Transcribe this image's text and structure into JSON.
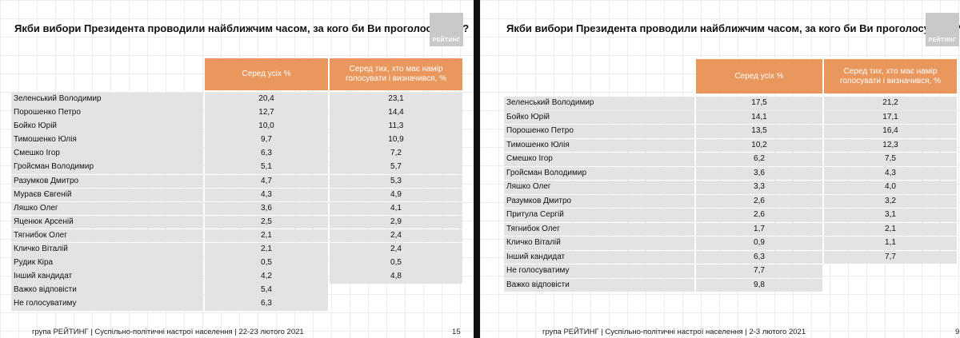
{
  "slides": [
    {
      "title": "Якби вибори Президента проводили найближчим часом, за кого би Ви проголосували?",
      "logo": "РЕЙТИНГ",
      "col1_header": "Серед усіх %",
      "col2_header": "Серед тих, хто має намір голосувати і визначився, %",
      "rows": [
        {
          "name": "Зеленський Володимир",
          "v1": "20,4",
          "v2": "23,1"
        },
        {
          "name": "Порошенко Петро",
          "v1": "12,7",
          "v2": "14,4"
        },
        {
          "name": "Бойко Юрій",
          "v1": "10,0",
          "v2": "11,3"
        },
        {
          "name": "Тимошенко Юлія",
          "v1": "9,7",
          "v2": "10,9"
        },
        {
          "name": "Смешко Ігор",
          "v1": "6,3",
          "v2": "7,2"
        },
        {
          "name": "Гройсман Володимир",
          "v1": "5,1",
          "v2": "5,7"
        },
        {
          "name": "Разумков Дмитро",
          "v1": "4,7",
          "v2": "5,3"
        },
        {
          "name": "Мураєв Євгеній",
          "v1": "4,3",
          "v2": "4,9"
        },
        {
          "name": "Ляшко Олег",
          "v1": "3,6",
          "v2": "4,1"
        },
        {
          "name": "Яценюк Арсеній",
          "v1": "2,5",
          "v2": "2,9"
        },
        {
          "name": "Тягнибок Олег",
          "v1": "2,1",
          "v2": "2,4"
        },
        {
          "name": "Кличко Віталій",
          "v1": "2,1",
          "v2": "2,4"
        },
        {
          "name": "Рудик Кіра",
          "v1": "0,5",
          "v2": "0,5"
        },
        {
          "name": "Інший кандидат",
          "v1": "4,2",
          "v2": "4,8"
        },
        {
          "name": "Важко відповісти",
          "v1": "5,4",
          "v2": ""
        },
        {
          "name": "Не голосуватиму",
          "v1": "6,3",
          "v2": ""
        }
      ],
      "footer": "група РЕЙТИНГ | Суспільно-політичні настрої населення  | 22-23 лютого 2021",
      "page": "15"
    },
    {
      "title": "Якби вибори Президента проводили найближчим часом, за кого би Ви проголосували?",
      "logo": "РЕЙТИНГ",
      "col1_header": "Серед усіх %",
      "col2_header": "Серед тих, хто має намір голосувати і визначився, %",
      "rows": [
        {
          "name": "Зеленський Володимир",
          "v1": "17,5",
          "v2": "21,2"
        },
        {
          "name": "Бойко Юрій",
          "v1": "14,1",
          "v2": "17,1"
        },
        {
          "name": "Порошенко Петро",
          "v1": "13,5",
          "v2": "16,4"
        },
        {
          "name": "Тимошенко Юлія",
          "v1": "10,2",
          "v2": "12,3"
        },
        {
          "name": "Смешко Ігор",
          "v1": "6,2",
          "v2": "7,5"
        },
        {
          "name": "Гройсман Володимир",
          "v1": "3,6",
          "v2": "4,3"
        },
        {
          "name": "Ляшко Олег",
          "v1": "3,3",
          "v2": "4,0"
        },
        {
          "name": "Разумков Дмитро",
          "v1": "2,6",
          "v2": "3,2"
        },
        {
          "name": "Притула Сергій",
          "v1": "2,6",
          "v2": "3,1"
        },
        {
          "name": "Тягнибок Олег",
          "v1": "1,7",
          "v2": "2,1"
        },
        {
          "name": "Кличко Віталій",
          "v1": "0,9",
          "v2": "1,1"
        },
        {
          "name": "Інший кандидат",
          "v1": "6,3",
          "v2": "7,7"
        },
        {
          "name": "Не голосуватиму",
          "v1": "7,7",
          "v2": ""
        },
        {
          "name": "Важко відповісти",
          "v1": "9,8",
          "v2": ""
        }
      ],
      "footer": "група РЕЙТИНГ | Суспільно-політичні настрої населення  | 2-3 лютого 2021",
      "page": "9"
    }
  ]
}
